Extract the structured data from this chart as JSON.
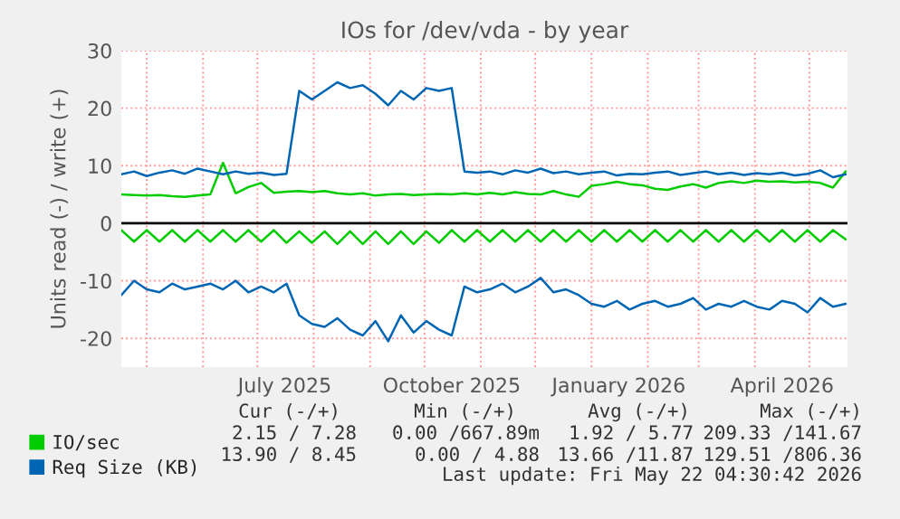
{
  "chart_data": {
    "type": "line",
    "title": "IOs for /dev/vda - by year",
    "ylabel": "Units read (-) / write (+)",
    "x": [
      "2025-04-17",
      "2025-04-24",
      "2025-05-01",
      "2025-05-08",
      "2025-05-15",
      "2025-05-22",
      "2025-05-29",
      "2025-06-05",
      "2025-06-12",
      "2025-06-19",
      "2025-06-26",
      "2025-07-03",
      "2025-07-10",
      "2025-07-17",
      "2025-07-24",
      "2025-07-31",
      "2025-08-07",
      "2025-08-14",
      "2025-08-21",
      "2025-08-28",
      "2025-09-04",
      "2025-09-11",
      "2025-09-18",
      "2025-09-25",
      "2025-10-02",
      "2025-10-09",
      "2025-10-16",
      "2025-10-23",
      "2025-10-30",
      "2025-11-06",
      "2025-11-13",
      "2025-11-20",
      "2025-11-27",
      "2025-12-04",
      "2025-12-11",
      "2025-12-18",
      "2025-12-25",
      "2026-01-01",
      "2026-01-08",
      "2026-01-15",
      "2026-01-22",
      "2026-01-29",
      "2026-02-05",
      "2026-02-12",
      "2026-02-19",
      "2026-02-26",
      "2026-03-05",
      "2026-03-12",
      "2026-03-19",
      "2026-03-26",
      "2026-04-02",
      "2026-04-09",
      "2026-04-16",
      "2026-04-23",
      "2026-04-30",
      "2026-05-07",
      "2026-05-14",
      "2026-05-21"
    ],
    "series": [
      {
        "name": "IO/sec",
        "color": "#00cc00",
        "values": [
          5,
          4.9,
          4.8,
          4.9,
          4.7,
          4.6,
          4.8,
          5,
          10.5,
          5.2,
          6.3,
          7,
          5.3,
          5.5,
          5.6,
          5.4,
          5.6,
          5.2,
          5.0,
          5.2,
          4.8,
          5.0,
          5.1,
          4.9,
          5.0,
          5.1,
          5.0,
          5.2,
          5.0,
          5.3,
          5.0,
          5.4,
          5.1,
          5.0,
          5.6,
          5.0,
          4.6,
          6.5,
          6.8,
          7.2,
          6.8,
          6.6,
          6.0,
          5.8,
          6.4,
          6.8,
          6.2,
          7.0,
          7.3,
          7.0,
          7.4,
          7.2,
          7.3,
          7.1,
          7.2,
          7.0,
          6.2,
          9
        ]
      },
      {
        "color": "#00cc00",
        "values": [
          -1.2,
          -3.2,
          -1.2,
          -3.2,
          -1.2,
          -3.2,
          -1.2,
          -3.2,
          -1.2,
          -3.2,
          -1.2,
          -3.2,
          -1.2,
          -3.4,
          -1.4,
          -3.4,
          -1.4,
          -3.6,
          -1.4,
          -3.6,
          -1.4,
          -3.6,
          -1.4,
          -3.6,
          -1.4,
          -3.4,
          -1.2,
          -3.2,
          -1.2,
          -3.2,
          -1.2,
          -3.2,
          -1.2,
          -3.2,
          -1.2,
          -3.2,
          -1.2,
          -3.2,
          -1.2,
          -3.2,
          -1.2,
          -3.2,
          -1.2,
          -3.2,
          -1.2,
          -3.2,
          -1.2,
          -3.2,
          -1.2,
          -3.2,
          -1.2,
          -3.2,
          -1.2,
          -3.2,
          -1.2,
          -3.2,
          -1.2,
          -2.8
        ]
      },
      {
        "name": "Req Size (KB)",
        "color": "#0066b3",
        "values": [
          8.5,
          9,
          8.2,
          8.8,
          9.2,
          8.6,
          9.5,
          9,
          8.5,
          9,
          8.6,
          8.8,
          8.4,
          8.6,
          23,
          21.5,
          23,
          24.5,
          23.5,
          24,
          22.5,
          20.5,
          23,
          21.5,
          23.5,
          23,
          23.5,
          9,
          8.8,
          9,
          8.5,
          9.2,
          8.8,
          9.5,
          8.7,
          9,
          8.5,
          8.8,
          9,
          8.3,
          8.6,
          8.5,
          8.8,
          9,
          8.4,
          8.7,
          9,
          8.5,
          8.8,
          8.4,
          8.7,
          8.5,
          8.8,
          8.3,
          8.6,
          9.2,
          8,
          8.5
        ]
      },
      {
        "color": "#0066b3",
        "values": [
          -12.5,
          -10,
          -11.5,
          -12,
          -10.5,
          -11.5,
          -11,
          -10.5,
          -11.5,
          -10,
          -12,
          -11,
          -12,
          -10.5,
          -16,
          -17.5,
          -18,
          -16.5,
          -18.5,
          -19.5,
          -17,
          -20.5,
          -16,
          -19,
          -17,
          -18.5,
          -19.5,
          -11,
          -12,
          -11.5,
          -10.5,
          -12,
          -11,
          -9.5,
          -12,
          -11.5,
          -12.5,
          -14,
          -14.5,
          -13.5,
          -15,
          -14,
          -13.5,
          -14.5,
          -14,
          -13,
          -15,
          -14,
          -14.5,
          -13.5,
          -14.5,
          -15,
          -13.5,
          -14,
          -15.5,
          -13,
          -14.5,
          -14
        ]
      }
    ],
    "xlim": [
      "2025-04-17",
      "2026-05-22"
    ],
    "xticks": [
      {
        "value": "2025-05-01",
        "label": null
      },
      {
        "value": "2025-06-01",
        "label": null
      },
      {
        "value": "2025-07-01",
        "label": null
      },
      {
        "value": "2025-07-16",
        "label": "July 2025"
      },
      {
        "value": "2025-08-01",
        "label": null
      },
      {
        "value": "2025-09-01",
        "label": null
      },
      {
        "value": "2025-10-01",
        "label": null
      },
      {
        "value": "2025-10-16",
        "label": "October 2025"
      },
      {
        "value": "2025-11-01",
        "label": null
      },
      {
        "value": "2025-12-01",
        "label": null
      },
      {
        "value": "2026-01-01",
        "label": null
      },
      {
        "value": "2026-01-16",
        "label": "January 2026"
      },
      {
        "value": "2026-02-01",
        "label": null
      },
      {
        "value": "2026-03-01",
        "label": null
      },
      {
        "value": "2026-04-01",
        "label": null
      },
      {
        "value": "2026-04-16",
        "label": "April 2026"
      },
      {
        "value": "2026-05-01",
        "label": null
      }
    ],
    "ylim": [
      -25,
      30
    ],
    "yticks": [
      -20,
      -10,
      0,
      10,
      20,
      30
    ],
    "ref_lines": [
      {
        "axis": "y",
        "value": 0,
        "color": "#000000"
      }
    ],
    "grid": true,
    "legend": "bottom left",
    "annotations": [
      "Cur (-/+)",
      "Min (-/+)",
      "Avg (-/+)",
      "Max (-/+)",
      "2.15 / 7.28",
      "0.00 /667.89m",
      "1.92 / 5.77",
      "209.33 /141.67",
      "13.90 / 8.45",
      "0.00 / 4.88",
      "13.66 /11.87",
      "129.51 /806.36",
      "Last update: Fri May 22 04:30:42 2026"
    ]
  }
}
